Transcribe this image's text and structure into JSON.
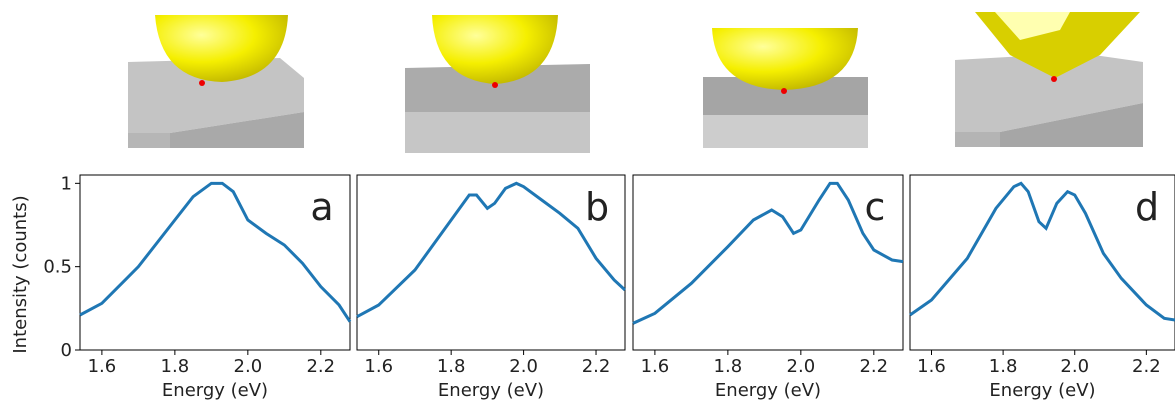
{
  "chart_data": [
    {
      "type": "line",
      "ylabel": "Intensity (counts)",
      "xlabel": "Energy (eV)",
      "annotation": "a",
      "color": "#1f77b4",
      "x": [
        1.54,
        1.6,
        1.7,
        1.8,
        1.85,
        1.9,
        1.93,
        1.96,
        2.0,
        2.05,
        2.1,
        2.15,
        2.2,
        2.25,
        2.28
      ],
      "values": [
        0.21,
        0.28,
        0.5,
        0.78,
        0.92,
        1.0,
        1.0,
        0.95,
        0.78,
        0.7,
        0.63,
        0.52,
        0.38,
        0.27,
        0.17
      ],
      "xlim": [
        1.54,
        2.28
      ],
      "xticks": [
        1.6,
        1.8,
        {
          "value": 2,
          "label": "2.0"
        },
        2.2
      ],
      "ylim": [
        0,
        1.05
      ],
      "yticks": [
        0,
        0.5,
        1
      ]
    },
    {
      "type": "line",
      "xlabel": "Energy (eV)",
      "annotation": "b",
      "color": "#1f77b4",
      "x": [
        1.54,
        1.6,
        1.7,
        1.8,
        1.85,
        1.87,
        1.9,
        1.92,
        1.95,
        1.98,
        2.0,
        2.05,
        2.1,
        2.15,
        2.2,
        2.25,
        2.28
      ],
      "values": [
        0.2,
        0.27,
        0.48,
        0.78,
        0.93,
        0.93,
        0.85,
        0.88,
        0.97,
        1.0,
        0.98,
        0.9,
        0.82,
        0.73,
        0.55,
        0.42,
        0.36
      ],
      "xlim": [
        1.54,
        2.28
      ],
      "xticks": [
        1.6,
        1.8,
        {
          "value": 2,
          "label": "2.0"
        },
        2.2
      ],
      "ylim": [
        0,
        1.05
      ]
    },
    {
      "type": "line",
      "xlabel": "Energy (eV)",
      "annotation": "c",
      "color": "#1f77b4",
      "x": [
        1.54,
        1.6,
        1.7,
        1.8,
        1.87,
        1.92,
        1.95,
        1.98,
        2.0,
        2.05,
        2.08,
        2.1,
        2.13,
        2.17,
        2.2,
        2.25,
        2.28
      ],
      "values": [
        0.16,
        0.22,
        0.4,
        0.62,
        0.78,
        0.84,
        0.8,
        0.7,
        0.72,
        0.9,
        1.0,
        1.0,
        0.9,
        0.7,
        0.6,
        0.54,
        0.53
      ],
      "xlim": [
        1.54,
        2.28
      ],
      "xticks": [
        1.6,
        1.8,
        {
          "value": 2,
          "label": "2.0"
        },
        2.2
      ],
      "ylim": [
        0,
        1.05
      ]
    },
    {
      "type": "line",
      "xlabel": "Energy (eV)",
      "annotation": "d",
      "color": "#1f77b4",
      "x": [
        1.54,
        1.6,
        1.7,
        1.78,
        1.83,
        1.85,
        1.87,
        1.9,
        1.92,
        1.95,
        1.98,
        2.0,
        2.03,
        2.08,
        2.13,
        2.2,
        2.25,
        2.28
      ],
      "values": [
        0.21,
        0.3,
        0.55,
        0.85,
        0.98,
        1.0,
        0.95,
        0.77,
        0.73,
        0.88,
        0.95,
        0.93,
        0.82,
        0.58,
        0.43,
        0.27,
        0.19,
        0.18
      ],
      "xlim": [
        1.54,
        2.28
      ],
      "xticks": [
        1.6,
        1.8,
        {
          "value": 2,
          "label": "2.0"
        },
        2.2
      ],
      "ylim": [
        0,
        1.05
      ]
    }
  ]
}
